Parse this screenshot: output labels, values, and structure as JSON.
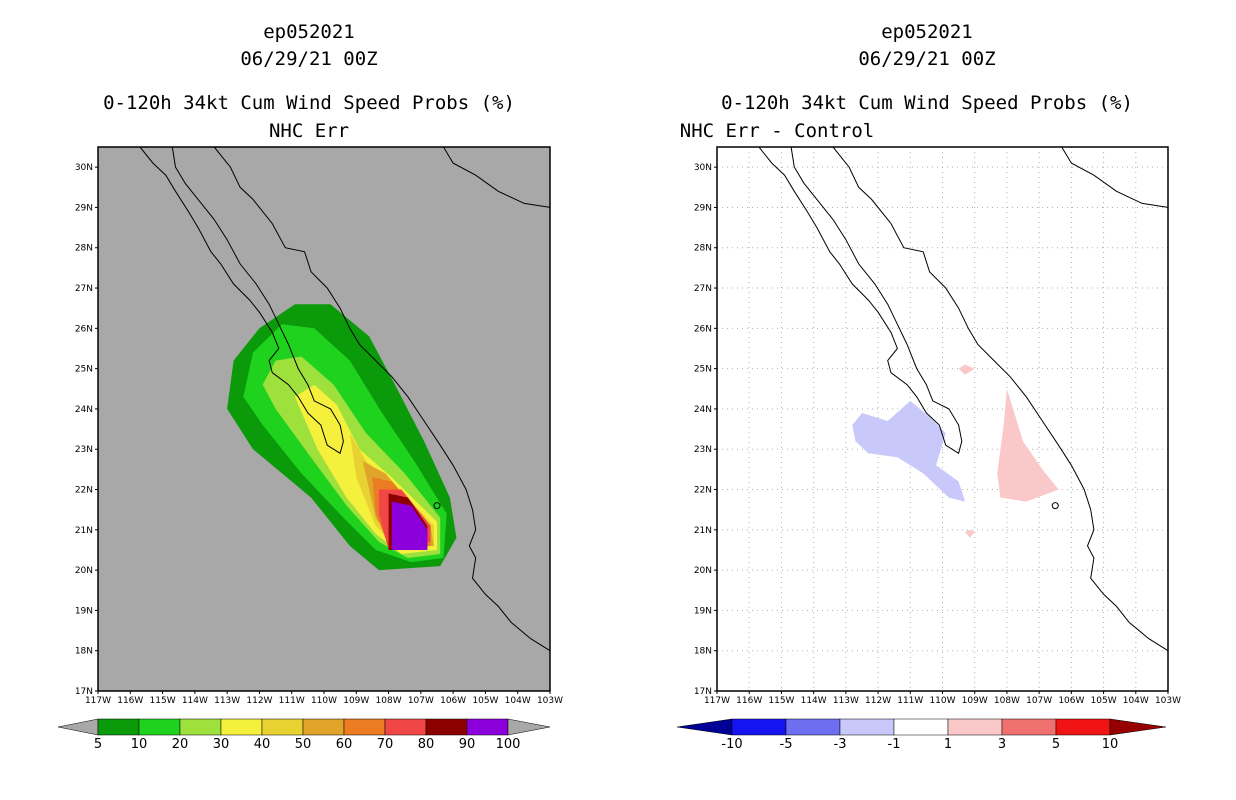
{
  "left": {
    "title_lines": [
      "ep052021",
      "06/29/21 00Z",
      "0-120h 34kt Cum Wind Speed Probs (%)",
      "NHC Err"
    ]
  },
  "right": {
    "title_lines": [
      "ep052021",
      "06/29/21 00Z",
      "0-120h 34kt Cum Wind Speed Probs (%)",
      "NHC Err - Control"
    ]
  },
  "colors": {
    "land_bg": "#a8a8a8",
    "prob_levels": [
      "#0a9a0a",
      "#1ed21e",
      "#9ee03c",
      "#f4f03c",
      "#e8d232",
      "#e0a42a",
      "#ec7c22",
      "#f04646",
      "#8c0000",
      "#8c00dc"
    ],
    "diff_levels": [
      "#000096",
      "#1414f0",
      "#6e6ef0",
      "#c8c8fa",
      "#ffffff",
      "#fac8c8",
      "#f07070",
      "#f01414",
      "#960000"
    ]
  },
  "chart_data": [
    {
      "type": "contour-map",
      "title": "0-120h 34kt Cum Wind Speed Probs (%) NHC Err",
      "storm": "ep052021",
      "time": "06/29/21 00Z",
      "lon_range": [
        -117,
        -103
      ],
      "lat_range": [
        17,
        30.5
      ],
      "x_ticks": [
        "117W",
        "116W",
        "115W",
        "114W",
        "113W",
        "112W",
        "111W",
        "110W",
        "109W",
        "108W",
        "107W",
        "106W",
        "105W",
        "104W",
        "103W"
      ],
      "y_ticks": [
        "17N",
        "18N",
        "19N",
        "20N",
        "21N",
        "22N",
        "23N",
        "24N",
        "25N",
        "26N",
        "27N",
        "28N",
        "29N",
        "30N"
      ],
      "colorbar_labels": [
        "5",
        "10",
        "20",
        "30",
        "40",
        "50",
        "60",
        "70",
        "80",
        "90",
        "100"
      ],
      "contours": [
        {
          "level": 5,
          "polygon": [
            [
              -113.0,
              24.0
            ],
            [
              -112.8,
              25.2
            ],
            [
              -112.0,
              26.0
            ],
            [
              -110.9,
              26.6
            ],
            [
              -109.8,
              26.6
            ],
            [
              -108.6,
              25.8
            ],
            [
              -107.8,
              24.6
            ],
            [
              -106.9,
              23.2
            ],
            [
              -106.1,
              21.8
            ],
            [
              -105.9,
              20.8
            ],
            [
              -106.4,
              20.1
            ],
            [
              -108.3,
              20.0
            ],
            [
              -109.2,
              20.6
            ],
            [
              -110.4,
              21.8
            ],
            [
              -112.2,
              23.0
            ]
          ]
        },
        {
          "level": 10,
          "polygon": [
            [
              -112.5,
              24.3
            ],
            [
              -112.2,
              25.4
            ],
            [
              -111.3,
              26.1
            ],
            [
              -110.3,
              26.0
            ],
            [
              -109.2,
              25.2
            ],
            [
              -108.2,
              23.9
            ],
            [
              -107.2,
              22.7
            ],
            [
              -106.2,
              21.4
            ],
            [
              -106.3,
              20.3
            ],
            [
              -107.3,
              20.2
            ],
            [
              -108.4,
              20.5
            ],
            [
              -109.4,
              21.3
            ],
            [
              -110.7,
              22.4
            ],
            [
              -111.9,
              23.6
            ]
          ]
        },
        {
          "level": 20,
          "polygon": [
            [
              -111.9,
              24.6
            ],
            [
              -111.5,
              25.2
            ],
            [
              -110.7,
              25.3
            ],
            [
              -109.7,
              24.6
            ],
            [
              -108.7,
              23.4
            ],
            [
              -107.5,
              22.4
            ],
            [
              -106.4,
              21.3
            ],
            [
              -106.4,
              20.4
            ],
            [
              -107.4,
              20.3
            ],
            [
              -108.3,
              20.7
            ],
            [
              -109.3,
              21.6
            ],
            [
              -110.5,
              22.9
            ],
            [
              -111.5,
              24.0
            ]
          ]
        },
        {
          "level": 30,
          "polygon": [
            [
              -110.9,
              24.3
            ],
            [
              -110.3,
              24.6
            ],
            [
              -109.6,
              24.1
            ],
            [
              -108.9,
              23.0
            ],
            [
              -107.9,
              22.3
            ],
            [
              -106.5,
              21.2
            ],
            [
              -106.5,
              20.5
            ],
            [
              -107.6,
              20.4
            ],
            [
              -108.4,
              20.9
            ],
            [
              -109.3,
              21.8
            ],
            [
              -110.2,
              23.0
            ]
          ]
        },
        {
          "level": 40,
          "polygon": [
            [
              -109.2,
              23.4
            ],
            [
              -108.7,
              22.7
            ],
            [
              -107.9,
              22.2
            ],
            [
              -106.6,
              21.1
            ],
            [
              -106.6,
              20.6
            ],
            [
              -107.7,
              20.5
            ],
            [
              -108.4,
              21.1
            ],
            [
              -109.0,
              22.3
            ]
          ]
        },
        {
          "level": 50,
          "polygon": [
            [
              -108.8,
              22.7
            ],
            [
              -108.1,
              22.4
            ],
            [
              -106.7,
              21.1
            ],
            [
              -106.6,
              20.6
            ],
            [
              -107.8,
              20.6
            ],
            [
              -108.4,
              21.3
            ]
          ]
        },
        {
          "level": 60,
          "polygon": [
            [
              -108.5,
              22.3
            ],
            [
              -107.9,
              22.2
            ],
            [
              -106.7,
              21.1
            ],
            [
              -106.7,
              20.6
            ],
            [
              -108.0,
              20.6
            ],
            [
              -108.4,
              21.4
            ]
          ]
        },
        {
          "level": 70,
          "polygon": [
            [
              -108.3,
              22.0
            ],
            [
              -107.6,
              22.0
            ],
            [
              -106.7,
              21.1
            ],
            [
              -106.7,
              20.7
            ],
            [
              -108.0,
              20.5
            ],
            [
              -108.3,
              21.4
            ]
          ]
        },
        {
          "level": 80,
          "polygon": [
            [
              -108.0,
              21.9
            ],
            [
              -107.4,
              21.8
            ],
            [
              -106.8,
              21.1
            ],
            [
              -106.8,
              20.5
            ],
            [
              -108.0,
              20.5
            ]
          ]
        },
        {
          "level": 90,
          "polygon": [
            [
              -107.9,
              21.7
            ],
            [
              -107.3,
              21.6
            ],
            [
              -106.8,
              21.0
            ],
            [
              -106.8,
              20.5
            ],
            [
              -107.9,
              20.5
            ]
          ]
        }
      ]
    },
    {
      "type": "contour-map",
      "title": "0-120h 34kt Cum Wind Speed Probs (%) NHC Err - Control",
      "storm": "ep052021",
      "time": "06/29/21 00Z",
      "lon_range": [
        -117,
        -103
      ],
      "lat_range": [
        17,
        30.5
      ],
      "x_ticks": [
        "117W",
        "116W",
        "115W",
        "114W",
        "113W",
        "112W",
        "111W",
        "110W",
        "109W",
        "108W",
        "107W",
        "106W",
        "105W",
        "104W",
        "103W"
      ],
      "y_ticks": [
        "17N",
        "18N",
        "19N",
        "20N",
        "21N",
        "22N",
        "23N",
        "24N",
        "25N",
        "26N",
        "27N",
        "28N",
        "29N",
        "30N"
      ],
      "colorbar_labels": [
        "-10",
        "-5",
        "-3",
        "-1",
        "1",
        "3",
        "5",
        "10"
      ],
      "contours": [
        {
          "level": -1,
          "polygon": [
            [
              -112.8,
              23.6
            ],
            [
              -112.5,
              23.9
            ],
            [
              -111.7,
              23.7
            ],
            [
              -111.0,
              24.2
            ],
            [
              -110.4,
              23.8
            ],
            [
              -109.9,
              23.4
            ],
            [
              -110.2,
              22.6
            ],
            [
              -109.5,
              22.2
            ],
            [
              -109.3,
              21.7
            ],
            [
              -109.8,
              21.8
            ],
            [
              -110.6,
              22.4
            ],
            [
              -111.4,
              22.8
            ],
            [
              -112.3,
              22.9
            ],
            [
              -112.7,
              23.2
            ]
          ]
        },
        {
          "level": 1,
          "polygon": [
            [
              -108.0,
              24.5
            ],
            [
              -107.5,
              23.2
            ],
            [
              -106.9,
              22.5
            ],
            [
              -106.4,
              22.0
            ],
            [
              -107.4,
              21.7
            ],
            [
              -108.2,
              21.8
            ],
            [
              -108.3,
              22.4
            ],
            [
              -108.1,
              23.6
            ]
          ]
        },
        {
          "level": 1,
          "polygon": [
            [
              -109.3,
              25.1
            ],
            [
              -109.0,
              25.0
            ],
            [
              -109.3,
              24.85
            ],
            [
              -109.5,
              25.0
            ]
          ]
        },
        {
          "level": 1,
          "polygon": [
            [
              -109.15,
              21.0
            ],
            [
              -109.0,
              20.95
            ],
            [
              -109.15,
              20.8
            ],
            [
              -109.3,
              20.95
            ]
          ]
        }
      ]
    }
  ]
}
